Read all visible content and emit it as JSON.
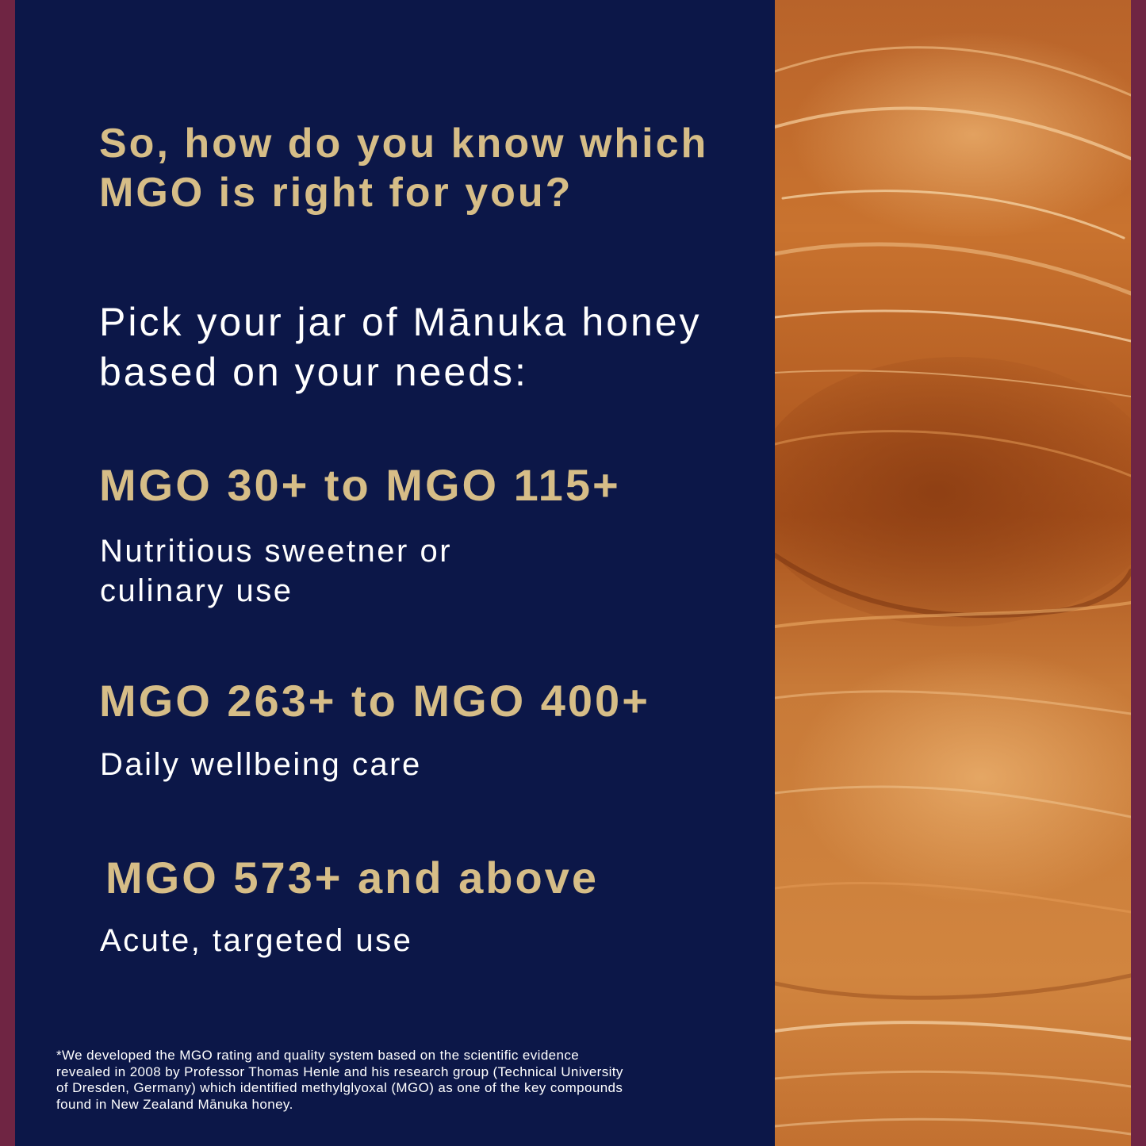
{
  "headline": {
    "question": "So, how do you know which MGO is right for you?"
  },
  "intro": {
    "text": "Pick your jar of Mānuka honey based on your needs:"
  },
  "ranges": [
    {
      "title": "MGO 30+ to MGO 115+",
      "description": "Nutritious sweetner or culinary use"
    },
    {
      "title": "MGO 263+ to MGO 400+",
      "description": "Daily wellbeing care"
    },
    {
      "title": "MGO 573+ and above",
      "description": "Acute, targeted use"
    }
  ],
  "footnote": {
    "text": "*We developed the MGO rating and quality system based on the scientific evidence\n revealed in 2008 by Professor Thomas Henle and his research group (Technical University\n of Dresden, Germany) which identified methylglyoxal (MGO) as one of the key compounds\n found in New Zealand Mānuka honey."
  },
  "colors": {
    "panel_background": "#0c1748",
    "heading_gold": "#d6bd87",
    "body_text": "#ffffff",
    "frame_maroon": "#6f2543",
    "honey_amber": "#c8702a"
  },
  "image": {
    "subject": "manuka-honey-closeup-photo"
  }
}
